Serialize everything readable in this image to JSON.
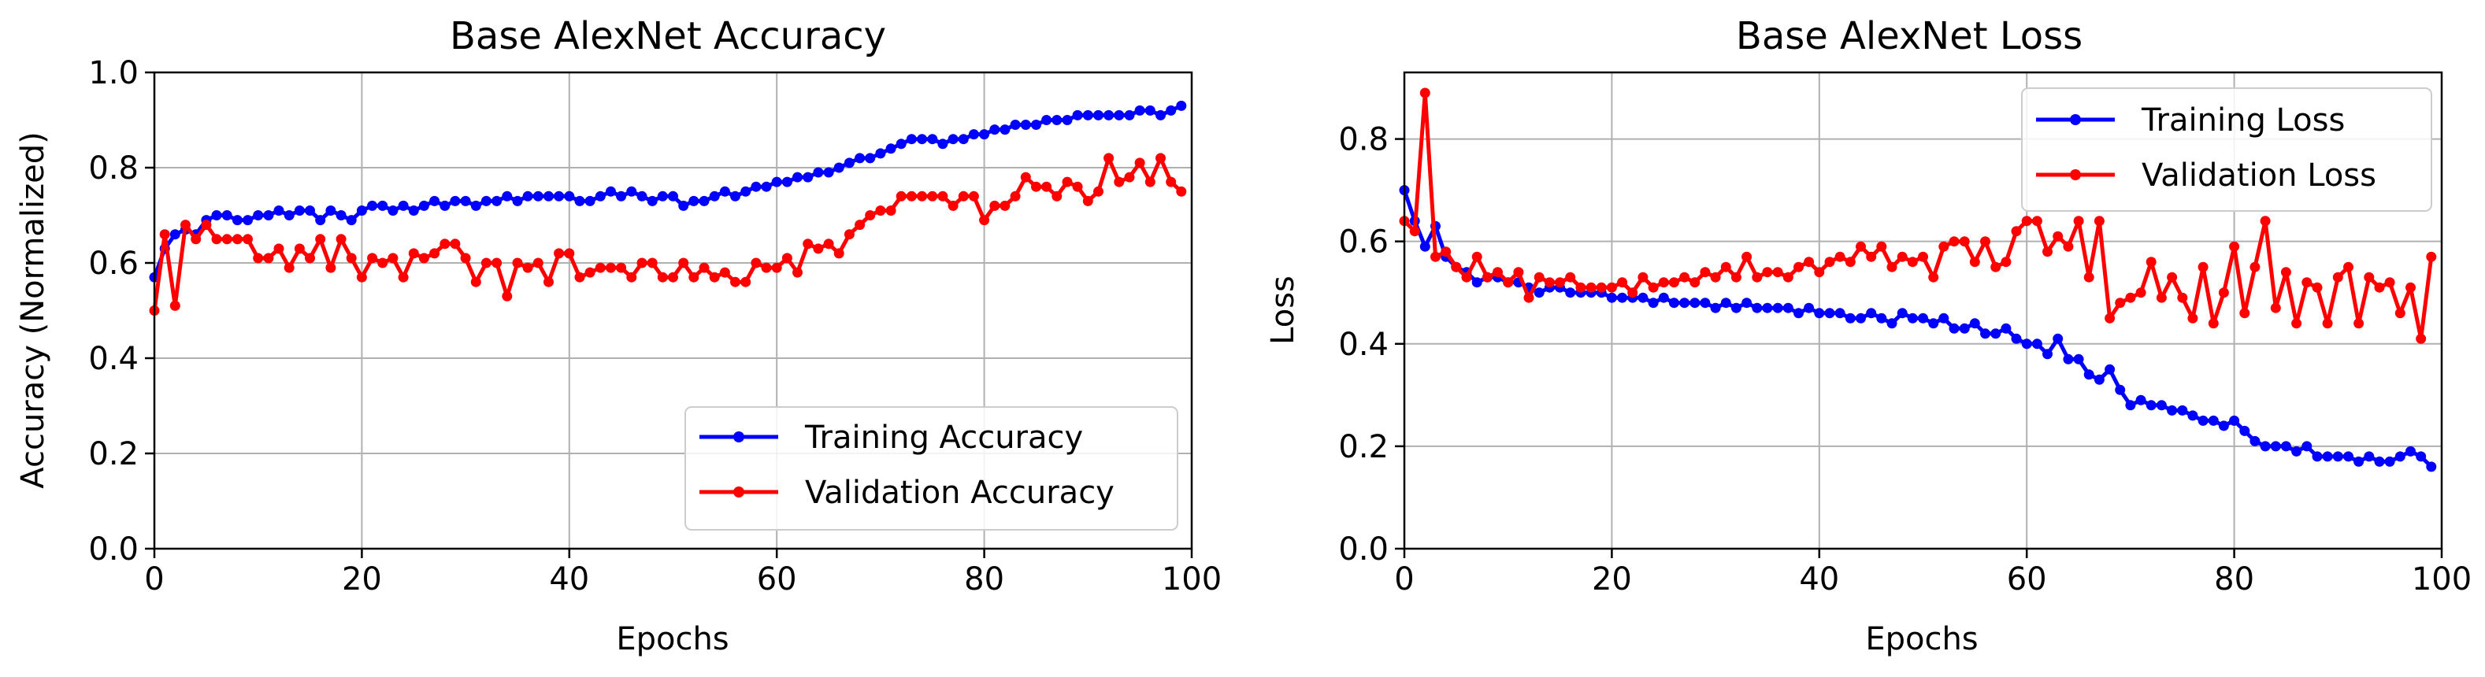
{
  "chart_data": [
    {
      "type": "line",
      "title": "Base AlexNet Accuracy",
      "xlabel": "Epochs",
      "ylabel": "Accuracy (Normalized)",
      "xlim": [
        0,
        100
      ],
      "ylim": [
        0,
        1.0
      ],
      "grid": true,
      "legend_position": "bottom-right",
      "xticks": [
        "0",
        "20",
        "40",
        "60",
        "80",
        "100"
      ],
      "xtick_values": [
        0,
        20,
        40,
        60,
        80,
        100
      ],
      "yticks": [
        "0.0",
        "0.2",
        "0.4",
        "0.6",
        "0.8",
        "1.0"
      ],
      "ytick_values": [
        0,
        0.2,
        0.4,
        0.6,
        0.8,
        1.0
      ],
      "series": [
        {
          "name": "Training Accuracy",
          "color": "#0000ff",
          "values": [
            0.57,
            0.63,
            0.66,
            0.67,
            0.66,
            0.69,
            0.7,
            0.7,
            0.69,
            0.69,
            0.7,
            0.7,
            0.71,
            0.7,
            0.71,
            0.71,
            0.69,
            0.71,
            0.7,
            0.69,
            0.71,
            0.72,
            0.72,
            0.71,
            0.72,
            0.71,
            0.72,
            0.73,
            0.72,
            0.73,
            0.73,
            0.72,
            0.73,
            0.73,
            0.74,
            0.73,
            0.74,
            0.74,
            0.74,
            0.74,
            0.74,
            0.73,
            0.73,
            0.74,
            0.75,
            0.74,
            0.75,
            0.74,
            0.73,
            0.74,
            0.74,
            0.72,
            0.73,
            0.73,
            0.74,
            0.75,
            0.74,
            0.75,
            0.76,
            0.76,
            0.77,
            0.77,
            0.78,
            0.78,
            0.79,
            0.79,
            0.8,
            0.81,
            0.82,
            0.82,
            0.83,
            0.84,
            0.85,
            0.86,
            0.86,
            0.86,
            0.85,
            0.86,
            0.86,
            0.87,
            0.87,
            0.88,
            0.88,
            0.89,
            0.89,
            0.89,
            0.9,
            0.9,
            0.9,
            0.91,
            0.91,
            0.91,
            0.91,
            0.91,
            0.91,
            0.92,
            0.92,
            0.91,
            0.92,
            0.93
          ]
        },
        {
          "name": "Validation Accuracy",
          "color": "#ff0000",
          "values": [
            0.5,
            0.66,
            0.51,
            0.68,
            0.65,
            0.68,
            0.65,
            0.65,
            0.65,
            0.65,
            0.61,
            0.61,
            0.63,
            0.59,
            0.63,
            0.61,
            0.65,
            0.59,
            0.65,
            0.61,
            0.57,
            0.61,
            0.6,
            0.61,
            0.57,
            0.62,
            0.61,
            0.62,
            0.64,
            0.64,
            0.61,
            0.56,
            0.6,
            0.6,
            0.53,
            0.6,
            0.59,
            0.6,
            0.56,
            0.62,
            0.62,
            0.57,
            0.58,
            0.59,
            0.59,
            0.59,
            0.57,
            0.6,
            0.6,
            0.57,
            0.57,
            0.6,
            0.57,
            0.59,
            0.57,
            0.58,
            0.56,
            0.56,
            0.6,
            0.59,
            0.59,
            0.61,
            0.58,
            0.64,
            0.63,
            0.64,
            0.62,
            0.66,
            0.68,
            0.7,
            0.71,
            0.71,
            0.74,
            0.74,
            0.74,
            0.74,
            0.74,
            0.72,
            0.74,
            0.74,
            0.69,
            0.72,
            0.72,
            0.74,
            0.78,
            0.76,
            0.76,
            0.74,
            0.77,
            0.76,
            0.73,
            0.75,
            0.82,
            0.77,
            0.78,
            0.81,
            0.77,
            0.82,
            0.77,
            0.75
          ]
        }
      ]
    },
    {
      "type": "line",
      "title": "Base AlexNet Loss",
      "xlabel": "Epochs",
      "ylabel": "Loss",
      "xlim": [
        0,
        100
      ],
      "ylim": [
        0,
        0.93
      ],
      "grid": true,
      "legend_position": "top-right",
      "xticks": [
        "0",
        "20",
        "40",
        "60",
        "80",
        "100"
      ],
      "xtick_values": [
        0,
        20,
        40,
        60,
        80,
        100
      ],
      "yticks": [
        "0.0",
        "0.2",
        "0.4",
        "0.6",
        "0.8"
      ],
      "ytick_values": [
        0,
        0.2,
        0.4,
        0.6,
        0.8
      ],
      "series": [
        {
          "name": "Training Loss",
          "color": "#0000ff",
          "values": [
            0.7,
            0.64,
            0.59,
            0.63,
            0.57,
            0.55,
            0.54,
            0.52,
            0.53,
            0.53,
            0.52,
            0.52,
            0.51,
            0.5,
            0.51,
            0.51,
            0.5,
            0.5,
            0.5,
            0.5,
            0.49,
            0.49,
            0.49,
            0.49,
            0.48,
            0.49,
            0.48,
            0.48,
            0.48,
            0.48,
            0.47,
            0.48,
            0.47,
            0.48,
            0.47,
            0.47,
            0.47,
            0.47,
            0.46,
            0.47,
            0.46,
            0.46,
            0.46,
            0.45,
            0.45,
            0.46,
            0.45,
            0.44,
            0.46,
            0.45,
            0.45,
            0.44,
            0.45,
            0.43,
            0.43,
            0.44,
            0.42,
            0.42,
            0.43,
            0.41,
            0.4,
            0.4,
            0.38,
            0.41,
            0.37,
            0.37,
            0.34,
            0.33,
            0.35,
            0.31,
            0.28,
            0.29,
            0.28,
            0.28,
            0.27,
            0.27,
            0.26,
            0.25,
            0.25,
            0.24,
            0.25,
            0.23,
            0.21,
            0.2,
            0.2,
            0.2,
            0.19,
            0.2,
            0.18,
            0.18,
            0.18,
            0.18,
            0.17,
            0.18,
            0.17,
            0.17,
            0.18,
            0.19,
            0.18,
            0.16
          ]
        },
        {
          "name": "Validation Loss",
          "color": "#ff0000",
          "values": [
            0.64,
            0.62,
            0.89,
            0.57,
            0.58,
            0.55,
            0.53,
            0.57,
            0.53,
            0.54,
            0.52,
            0.54,
            0.49,
            0.53,
            0.52,
            0.52,
            0.53,
            0.51,
            0.51,
            0.51,
            0.51,
            0.52,
            0.5,
            0.53,
            0.51,
            0.52,
            0.52,
            0.53,
            0.52,
            0.54,
            0.53,
            0.55,
            0.53,
            0.57,
            0.53,
            0.54,
            0.54,
            0.53,
            0.55,
            0.56,
            0.54,
            0.56,
            0.57,
            0.56,
            0.59,
            0.57,
            0.59,
            0.55,
            0.57,
            0.56,
            0.57,
            0.53,
            0.59,
            0.6,
            0.6,
            0.56,
            0.6,
            0.55,
            0.56,
            0.62,
            0.64,
            0.64,
            0.58,
            0.61,
            0.59,
            0.64,
            0.53,
            0.64,
            0.45,
            0.48,
            0.49,
            0.5,
            0.56,
            0.49,
            0.53,
            0.49,
            0.45,
            0.55,
            0.44,
            0.5,
            0.59,
            0.46,
            0.55,
            0.64,
            0.47,
            0.54,
            0.44,
            0.52,
            0.51,
            0.44,
            0.53,
            0.55,
            0.44,
            0.53,
            0.51,
            0.52,
            0.46,
            0.51,
            0.41,
            0.57
          ]
        }
      ]
    }
  ]
}
